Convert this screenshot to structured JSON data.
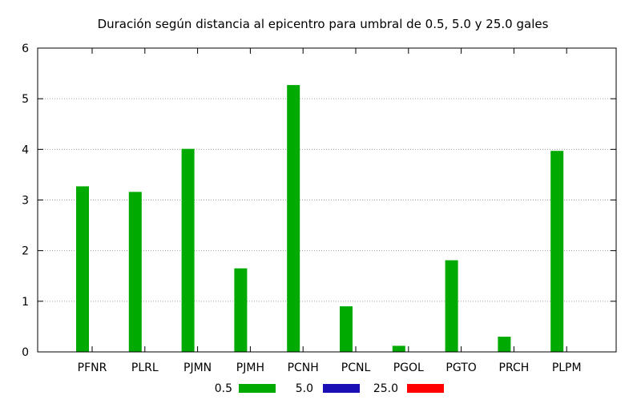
{
  "chart_data": {
    "type": "bar",
    "title": "Duración según distancia al epicentro para umbral de 0.5, 5.0 y 25.0 gales",
    "xlabel": "",
    "ylabel": "",
    "categories": [
      "PFNR",
      "PLRL",
      "PJMN",
      "PJMH",
      "PCNH",
      "PCNL",
      "PGOL",
      "PGTO",
      "PRCH",
      "PLPM"
    ],
    "series": [
      {
        "name": "0.5",
        "color": "#00aa00",
        "values": [
          3.27,
          3.16,
          4.01,
          1.65,
          5.27,
          0.9,
          0.12,
          1.81,
          0.3,
          3.97
        ]
      },
      {
        "name": "5.0",
        "color": "#1a0fb4",
        "values": [
          0,
          0,
          0,
          0,
          0,
          0,
          0,
          0,
          0,
          0
        ]
      },
      {
        "name": "25.0",
        "color": "#ff0000",
        "values": [
          0,
          0,
          0,
          0,
          0,
          0,
          0,
          0,
          0,
          0
        ]
      }
    ],
    "ylim": [
      0,
      6
    ],
    "yticks": [
      "0",
      "1",
      "2",
      "3",
      "4",
      "5",
      "6"
    ],
    "grid": "horizontal dotted",
    "legend_position": "bottom"
  }
}
